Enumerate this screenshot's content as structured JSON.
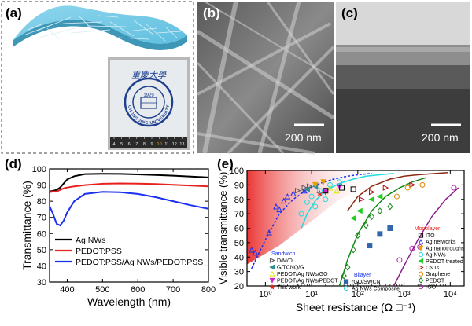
{
  "panels": {
    "a": {
      "label": "(a)",
      "seal_text": "CHONGQING UNIVERSITY",
      "seal_chinese": "重慶大學",
      "seal_year": "1929",
      "ruler_numbers": [
        "4",
        "5",
        "6",
        "7",
        "8",
        "9",
        "10",
        "11",
        "12",
        "13"
      ]
    },
    "b": {
      "label": "(b)",
      "scale_text": "200 nm"
    },
    "c": {
      "label": "(c)",
      "scale_text": "200 nm"
    }
  },
  "chart_data": [
    {
      "panel": "(d)",
      "type": "line",
      "title": "",
      "xlabel": "Wavelength (nm)",
      "ylabel": "Transmittance (%)",
      "xlim": [
        350,
        800
      ],
      "ylim": [
        30,
        100
      ],
      "xticks": [
        "400",
        "500",
        "600",
        "700",
        "800"
      ],
      "yticks": [
        "30",
        "40",
        "50",
        "60",
        "70",
        "80",
        "90",
        "100"
      ],
      "legend_position": "bottom-right",
      "x": [
        350,
        360,
        370,
        380,
        390,
        400,
        420,
        450,
        500,
        550,
        600,
        650,
        700,
        750,
        800
      ],
      "series": [
        {
          "name": "Ag NWs",
          "color": "#000000",
          "values": [
            86,
            86.5,
            87,
            88.5,
            91,
            93.5,
            95.5,
            96.8,
            97,
            96.9,
            96.6,
            96.2,
            95.8,
            95.3,
            94.7
          ]
        },
        {
          "name": "PEDOT:PSS",
          "color": "#e8211f",
          "values": [
            85.5,
            86,
            86,
            87,
            88,
            88.5,
            89.2,
            90,
            90.8,
            91,
            90.9,
            90.6,
            90.2,
            89.7,
            89.2
          ]
        },
        {
          "name": "PEDOT:PSS/Ag NWs/PEDOT:PSS",
          "color": "#1a2ff0",
          "values": [
            77,
            72,
            66,
            65,
            68,
            73,
            80,
            84.5,
            85.8,
            85.5,
            84.5,
            82.5,
            80,
            77.5,
            75.3
          ]
        }
      ]
    },
    {
      "panel": "(e)",
      "type": "scatter",
      "title": "",
      "xlabel": "Sheet resistance (Ω □⁻¹)",
      "ylabel": "Visible transmittance (%)",
      "xscale": "log",
      "xlim": [
        0.4,
        20000
      ],
      "ylim": [
        20,
        100
      ],
      "xticks": [
        "10⁰",
        "10¹",
        "10²",
        "10³",
        "10⁴"
      ],
      "yticks": [
        "20",
        "30",
        "40",
        "50",
        "60",
        "70",
        "80",
        "90",
        "100"
      ],
      "legend_groups": {
        "sandwich_title": "Sandwich",
        "sandwich": [
          {
            "name": "D/M/D",
            "color": "#555555",
            "marker": "triangle-right"
          },
          {
            "name": "G/TCNQ/G",
            "color": "#2a8f8f",
            "marker": "triangle-left"
          },
          {
            "name": "PEDOT/Ag NWs/GO",
            "color": "#e8e800",
            "marker": "triangle-up"
          },
          {
            "name": "PEDOT/Ag NWs/PEDOT",
            "color": "#d020d0",
            "marker": "triangle-down"
          },
          {
            "name": "This work",
            "color": "#e8211f",
            "marker": "star"
          }
        ],
        "bilayer_title": "Bilayer",
        "bilayer": [
          {
            "name": "rGO/SWCNT",
            "color": "#3366aa",
            "marker": "square-half"
          },
          {
            "name": "Ag NWs Composite",
            "color": "#22dddd",
            "marker": "circle"
          }
        ],
        "monolayer_title": "Monolayer",
        "monolayer": [
          {
            "name": "ITO",
            "color": "#000000",
            "marker": "square"
          },
          {
            "name": "Ag networks",
            "color": "#1a2ff0",
            "marker": "triangle-up"
          },
          {
            "name": "Ag nanotroughs",
            "color": "#e8a000",
            "marker": "triangle-down"
          },
          {
            "name": "Ag NWs",
            "color": "#22dddd",
            "marker": "circle"
          },
          {
            "name": "PEDOT treated",
            "color": "#22cc22",
            "marker": "triangle-left"
          },
          {
            "name": "CNTs",
            "color": "#b01010",
            "marker": "triangle-right"
          },
          {
            "name": "Graphene",
            "color": "#e08800",
            "marker": "circle"
          },
          {
            "name": "PEDOT",
            "color": "#118811",
            "marker": "diamond"
          },
          {
            "name": "rGO",
            "color": "#aa22aa",
            "marker": "circle"
          }
        ]
      },
      "points": [
        {
          "s": "Ag networks",
          "x": 0.5,
          "y": 45
        },
        {
          "s": "Ag networks",
          "x": 0.6,
          "y": 43
        },
        {
          "s": "Ag networks",
          "x": 1.2,
          "y": 57
        },
        {
          "s": "Ag networks",
          "x": 1.7,
          "y": 75
        },
        {
          "s": "Ag networks",
          "x": 2.0,
          "y": 73
        },
        {
          "s": "Ag networks",
          "x": 2.5,
          "y": 79
        },
        {
          "s": "Ag networks",
          "x": 3.0,
          "y": 82
        },
        {
          "s": "Ag networks",
          "x": 4.0,
          "y": 84
        },
        {
          "s": "Ag networks",
          "x": 7.0,
          "y": 86
        },
        {
          "s": "D/M/D",
          "x": 5.0,
          "y": 86
        },
        {
          "s": "D/M/D",
          "x": 7.0,
          "y": 88
        },
        {
          "s": "D/M/D",
          "x": 9.0,
          "y": 89
        },
        {
          "s": "G/TCNQ/G",
          "x": 8.0,
          "y": 87
        },
        {
          "s": "G/TCNQ/G",
          "x": 12.0,
          "y": 89
        },
        {
          "s": "PEDOT/Ag NWs/GO",
          "x": 25.0,
          "y": 88
        },
        {
          "s": "PEDOT/Ag NWs/GO",
          "x": 35.0,
          "y": 86
        },
        {
          "s": "PEDOT/Ag NWs/PEDOT",
          "x": 20.0,
          "y": 85
        },
        {
          "s": "PEDOT/Ag NWs/PEDOT",
          "x": 40.0,
          "y": 89
        },
        {
          "s": "This work",
          "x": 15.0,
          "y": 84
        },
        {
          "s": "Ag nanotroughs",
          "x": 12.0,
          "y": 90
        },
        {
          "s": "Ag nanotroughs",
          "x": 18.0,
          "y": 92
        },
        {
          "s": "Ag NWs",
          "x": 6.0,
          "y": 70
        },
        {
          "s": "Ag NWs",
          "x": 8.0,
          "y": 78
        },
        {
          "s": "Ag NWs",
          "x": 10.0,
          "y": 82
        },
        {
          "s": "Ag NWs",
          "x": 15.0,
          "y": 86
        },
        {
          "s": "Ag NWs",
          "x": 25.0,
          "y": 90
        },
        {
          "s": "Ag NWs",
          "x": 40.0,
          "y": 92
        },
        {
          "s": "Ag NWs Composite",
          "x": 12.0,
          "y": 75
        },
        {
          "s": "Ag NWs Composite",
          "x": 20.0,
          "y": 80
        },
        {
          "s": "ITO",
          "x": 20.0,
          "y": 86
        },
        {
          "s": "ITO",
          "x": 45.0,
          "y": 88
        },
        {
          "s": "ITO",
          "x": 80.0,
          "y": 87
        },
        {
          "s": "CNTs",
          "x": 120.0,
          "y": 80
        },
        {
          "s": "CNTs",
          "x": 200.0,
          "y": 85
        },
        {
          "s": "CNTs",
          "x": 400.0,
          "y": 88
        },
        {
          "s": "CNTs",
          "x": 1500.0,
          "y": 90
        },
        {
          "s": "PEDOT treated",
          "x": 80.0,
          "y": 67
        },
        {
          "s": "PEDOT treated",
          "x": 110.0,
          "y": 72
        },
        {
          "s": "PEDOT treated",
          "x": 200.0,
          "y": 80
        },
        {
          "s": "PEDOT treated",
          "x": 300.0,
          "y": 82
        },
        {
          "s": "PEDOT",
          "x": 50.0,
          "y": 27
        },
        {
          "s": "PEDOT",
          "x": 60.0,
          "y": 33
        },
        {
          "s": "PEDOT",
          "x": 80.0,
          "y": 45
        },
        {
          "s": "PEDOT",
          "x": 100.0,
          "y": 55
        },
        {
          "s": "PEDOT",
          "x": 150.0,
          "y": 62
        },
        {
          "s": "PEDOT",
          "x": 200.0,
          "y": 68
        },
        {
          "s": "PEDOT",
          "x": 300.0,
          "y": 72
        },
        {
          "s": "PEDOT",
          "x": 500.0,
          "y": 75
        },
        {
          "s": "rGO/SWCNT",
          "x": 180.0,
          "y": 48
        },
        {
          "s": "rGO/SWCNT",
          "x": 300.0,
          "y": 56
        },
        {
          "s": "rGO/SWCNT",
          "x": 500.0,
          "y": 60
        },
        {
          "s": "Graphene",
          "x": 700.0,
          "y": 82
        },
        {
          "s": "Graphene",
          "x": 1200.0,
          "y": 88
        },
        {
          "s": "Graphene",
          "x": 2500.0,
          "y": 90
        },
        {
          "s": "rGO",
          "x": 800.0,
          "y": 38
        },
        {
          "s": "rGO",
          "x": 1500.0,
          "y": 46
        },
        {
          "s": "rGO",
          "x": 2200.0,
          "y": 47
        },
        {
          "s": "rGO",
          "x": 12000.0,
          "y": 88
        }
      ],
      "fits": [
        {
          "name": "dashed",
          "color": "#1a2ff0",
          "dash": true,
          "x": [
            0.5,
            1,
            2,
            4,
            8,
            15,
            30,
            60,
            100,
            200
          ],
          "y": [
            32,
            52,
            70,
            80,
            87,
            91,
            94,
            96,
            97,
            98
          ]
        },
        {
          "name": "cyan",
          "color": "#22dddd",
          "dash": false,
          "x": [
            6,
            8,
            12,
            20,
            40,
            80,
            150,
            300,
            600
          ],
          "y": [
            60,
            70,
            79,
            86,
            91,
            94,
            96,
            97,
            98
          ]
        },
        {
          "name": "brown",
          "color": "#8b2a10",
          "dash": false,
          "x": [
            60,
            100,
            200,
            500,
            1000,
            2000,
            5000,
            9000
          ],
          "y": [
            72,
            82,
            89,
            94,
            96,
            97,
            98,
            98.5
          ]
        },
        {
          "name": "green",
          "color": "#118811",
          "dash": false,
          "x": [
            40,
            60,
            100,
            200,
            400,
            800,
            1500,
            3000
          ],
          "y": [
            20,
            38,
            56,
            72,
            82,
            88,
            92,
            95
          ]
        },
        {
          "name": "purple",
          "color": "#8b1a8b",
          "dash": false,
          "x": [
            600,
            1000,
            2000,
            4000,
            8000,
            15000
          ],
          "y": [
            20,
            34,
            52,
            68,
            80,
            88
          ]
        }
      ]
    }
  ]
}
